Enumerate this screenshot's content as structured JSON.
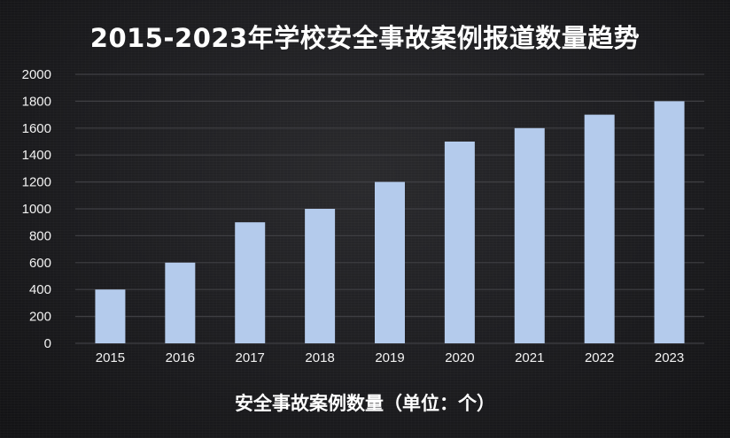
{
  "chart_data": {
    "type": "bar",
    "title": "2015-2023年学校安全事故案例报道数量趋势",
    "xlabel": "安全事故案例数量（单位：个）",
    "ylabel": "",
    "categories": [
      "2015",
      "2016",
      "2017",
      "2018",
      "2019",
      "2020",
      "2021",
      "2022",
      "2023"
    ],
    "values": [
      400,
      600,
      900,
      1000,
      1200,
      1500,
      1600,
      1700,
      1800
    ],
    "ylim": [
      0,
      2000
    ],
    "yticks": [
      "0",
      "200",
      "400",
      "600",
      "800",
      "1000",
      "1200",
      "1400",
      "1600",
      "1800",
      "2000"
    ],
    "grid": true,
    "legend": "none",
    "bar_color": "#b4cbec",
    "grid_color": "#3f3f43",
    "background_color": "#1f1f22"
  }
}
